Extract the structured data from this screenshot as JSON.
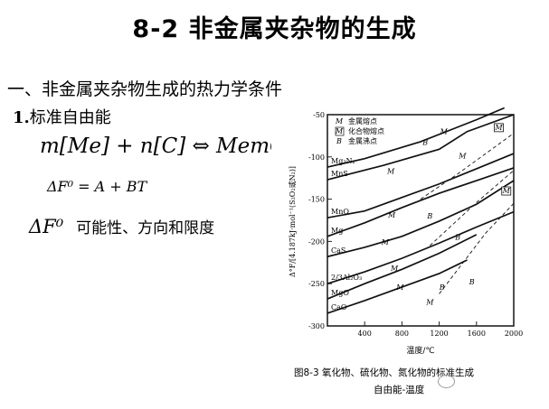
{
  "title": "8-2  非金属夹杂物的生成",
  "subtitle": "一、非金属夹杂物生成的热力学条件",
  "section": {
    "number": "1.",
    "label": "标准自由能"
  },
  "equations": {
    "reaction": "m[Me] + n[C] ⇔ MemCn",
    "free_energy": "ΔF⁰ = A + BT",
    "delta_sym": "ΔF⁰",
    "delta_text": "可能性、方向和限度"
  },
  "figure": {
    "caption_line1": "图8-3   氧化物、硫化物、氮化物的标准生成",
    "caption_line2": "自由能-温度",
    "ylabel": "Δ°F/[4.187kJ·mol⁻¹(S₂O₂或N₂)]",
    "xlabel": "温度/℃",
    "legend": [
      {
        "symbol": "M",
        "label": "金属熔点"
      },
      {
        "symbol": "[M]",
        "label": "化合物熔点"
      },
      {
        "symbol": "B",
        "label": "金属沸点"
      }
    ]
  },
  "chart_data": {
    "type": "line",
    "xlabel": "温度/℃",
    "ylabel": "Δ°F/[4.187kJ·mol⁻¹(S₂O₂或N₂)]",
    "xlim": [
      0,
      2000
    ],
    "ylim": [
      -300,
      -50
    ],
    "x_ticks": [
      400,
      800,
      1200,
      1600,
      2000
    ],
    "y_ticks": [
      -50,
      -100,
      -150,
      -200,
      -250,
      -300
    ],
    "x_tick_labels": [
      "400",
      "800",
      "1200",
      "1600",
      "2000"
    ],
    "y_tick_labels": [
      "-50",
      "-100",
      "-150",
      "-200",
      "-250",
      "-300"
    ],
    "series": [
      {
        "name": "Mg₃N₂",
        "x": [
          0,
          400,
          1000,
          1600,
          1900
        ],
        "y": [
          -112,
          -102,
          -82,
          -56,
          -42
        ],
        "dash": false
      },
      {
        "name": "MnS",
        "x": [
          0,
          600,
          1200,
          1500,
          2000
        ],
        "y": [
          -127,
          -110,
          -91,
          -70,
          -50
        ],
        "dash": false
      },
      {
        "name": "MnO",
        "x": [
          0,
          400,
          800,
          1200,
          1600,
          2000
        ],
        "y": [
          -172,
          -164,
          -148,
          -132,
          -114,
          -96
        ],
        "dash": false
      },
      {
        "name": "Mg",
        "x": [
          0,
          400,
          800,
          1200,
          1600,
          2000
        ],
        "y": [
          -194,
          -178,
          -160,
          -143,
          -128,
          -113
        ],
        "dash": false
      },
      {
        "name": "CaS",
        "x": [
          0,
          400,
          800,
          1200,
          1600,
          2000
        ],
        "y": [
          -218,
          -207,
          -194,
          -176,
          -156,
          -128
        ],
        "dash": false
      },
      {
        "name": "2/3Al₂O₃",
        "x": [
          0,
          400,
          800,
          1200,
          1600,
          2000
        ],
        "y": [
          -250,
          -236,
          -220,
          -202,
          -183,
          -165
        ],
        "dash": false
      },
      {
        "name": "MgO",
        "x": [
          0,
          400,
          800,
          1200,
          1600
        ],
        "y": [
          -268,
          -250,
          -233,
          -214,
          -192
        ],
        "dash": false
      },
      {
        "name": "CaO",
        "x": [
          0,
          400,
          800,
          1200,
          1500
        ],
        "y": [
          -285,
          -270,
          -254,
          -238,
          -222
        ],
        "dash": false
      },
      {
        "name": "",
        "x": [
          1000,
          1400,
          1800,
          2000
        ],
        "y": [
          -150,
          -120,
          -88,
          -72
        ],
        "dash": true
      },
      {
        "name": "",
        "x": [
          1100,
          1600,
          2000
        ],
        "y": [
          -205,
          -154,
          -116
        ],
        "dash": true
      },
      {
        "name": "",
        "x": [
          1200,
          1700,
          2000
        ],
        "y": [
          -262,
          -190,
          -155
        ],
        "dash": true
      }
    ],
    "markers": [
      {
        "symbol": "M",
        "x": 1250,
        "y": -73
      },
      {
        "symbol": "B",
        "x": 1050,
        "y": -86
      },
      {
        "symbol": "M",
        "x": 680,
        "y": -120
      },
      {
        "symbol": "M",
        "x": 1450,
        "y": -102
      },
      {
        "symbol": "[M]",
        "x": 1840,
        "y": -68
      },
      {
        "symbol": "M",
        "x": 690,
        "y": -172
      },
      {
        "symbol": "B",
        "x": 1100,
        "y": -173
      },
      {
        "symbol": "[M]",
        "x": 1920,
        "y": -143
      },
      {
        "symbol": "M",
        "x": 620,
        "y": -204
      },
      {
        "symbol": "B",
        "x": 1400,
        "y": -198
      },
      {
        "symbol": "M",
        "x": 720,
        "y": -235
      },
      {
        "symbol": "M",
        "x": 780,
        "y": -257
      },
      {
        "symbol": "B",
        "x": 1230,
        "y": -257
      },
      {
        "symbol": "B",
        "x": 1550,
        "y": -251
      },
      {
        "symbol": "M",
        "x": 1100,
        "y": -275
      }
    ]
  }
}
